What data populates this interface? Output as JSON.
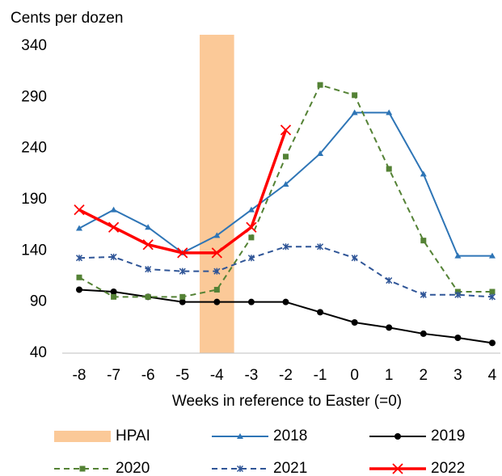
{
  "chart_data": {
    "type": "line",
    "ylabel": "Cents per dozen",
    "xlabel": "Weeks in reference to Easter (=0)",
    "x": [
      -8,
      -7,
      -6,
      -5,
      -4,
      -3,
      -2,
      -1,
      0,
      1,
      2,
      3,
      4
    ],
    "xticks": [
      -8,
      -7,
      -6,
      -5,
      -4,
      -3,
      -2,
      -1,
      0,
      1,
      2,
      3,
      4
    ],
    "ylim": [
      40,
      340
    ],
    "yticks": [
      40,
      90,
      140,
      190,
      240,
      290,
      340
    ],
    "grid": false,
    "legend": "bottom",
    "shaded_region": {
      "name": "HPAI",
      "xrange": [
        -4.5,
        -3.5
      ],
      "color": "#fbc998"
    },
    "series": [
      {
        "name": "2018",
        "color": "#2e75b6",
        "dash": false,
        "width": 2,
        "marker": "triangle",
        "values": [
          162,
          180,
          163,
          138,
          155,
          180,
          205,
          235,
          275,
          275,
          215,
          135,
          135
        ]
      },
      {
        "name": "2019",
        "color": "#000000",
        "dash": false,
        "width": 2,
        "marker": "circle",
        "values": [
          102,
          100,
          95,
          90,
          90,
          90,
          90,
          80,
          70,
          65,
          59,
          55,
          50
        ]
      },
      {
        "name": "2020",
        "color": "#548235",
        "dash": true,
        "width": 2,
        "marker": "square",
        "values": [
          114,
          95,
          95,
          95,
          102,
          153,
          232,
          302,
          292,
          220,
          150,
          100,
          100
        ]
      },
      {
        "name": "2021",
        "color": "#2f5597",
        "dash": true,
        "width": 2,
        "marker": "star",
        "values": [
          133,
          134,
          122,
          120,
          120,
          133,
          144,
          144,
          133,
          111,
          97,
          97,
          95
        ]
      },
      {
        "name": "2022",
        "color": "#ff0000",
        "dash": false,
        "width": 3.5,
        "marker": "x",
        "values": [
          180,
          163,
          146,
          138,
          138,
          163,
          258,
          null,
          null,
          null,
          null,
          null,
          null
        ]
      }
    ]
  }
}
